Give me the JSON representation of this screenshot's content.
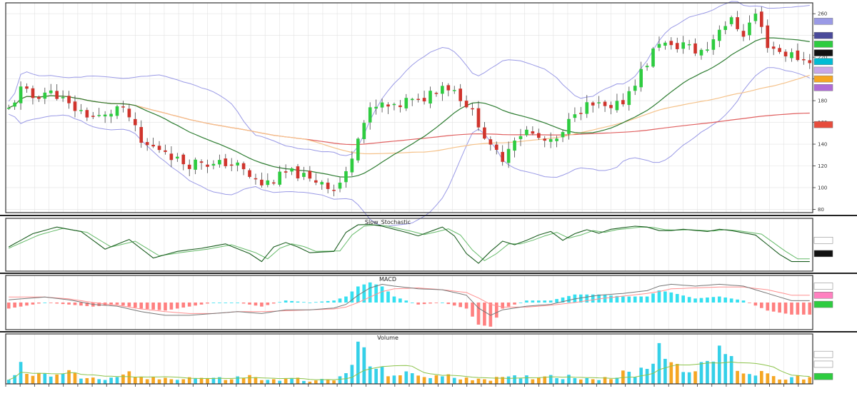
{
  "chart_data": {
    "type": "candlestick",
    "panels": [
      {
        "id": "price",
        "title": "",
        "ylim": [
          77,
          270
        ],
        "y_ticks": [
          80,
          100,
          120,
          140,
          160,
          180,
          200,
          220,
          240,
          260
        ]
      },
      {
        "id": "stoch",
        "title": "Slow_Stochastic",
        "ylim": [
          0,
          100
        ]
      },
      {
        "id": "macd",
        "title": "MACD",
        "ylim": [
          -25,
          25
        ]
      },
      {
        "id": "volume",
        "title": "Volume"
      }
    ],
    "x_tick_count": 56,
    "anchors": {
      "close": [
        [
          0,
          172
        ],
        [
          2,
          190
        ],
        [
          4,
          183
        ],
        [
          6,
          188
        ],
        [
          8,
          186
        ],
        [
          10,
          175
        ],
        [
          12,
          170
        ],
        [
          14,
          165
        ],
        [
          16,
          165
        ],
        [
          18,
          174
        ],
        [
          20,
          165
        ],
        [
          22,
          140
        ],
        [
          24,
          137
        ],
        [
          26,
          135
        ],
        [
          28,
          125
        ],
        [
          30,
          122
        ],
        [
          32,
          125
        ],
        [
          34,
          120
        ],
        [
          36,
          123
        ],
        [
          38,
          120
        ],
        [
          40,
          110
        ],
        [
          42,
          103
        ],
        [
          44,
          107
        ],
        [
          46,
          113
        ],
        [
          48,
          113
        ],
        [
          50,
          106
        ],
        [
          52,
          107
        ],
        [
          54,
          98
        ],
        [
          56,
          112
        ],
        [
          58,
          150
        ],
        [
          60,
          170
        ],
        [
          62,
          176
        ],
        [
          64,
          172
        ],
        [
          66,
          180
        ],
        [
          68,
          178
        ],
        [
          70,
          188
        ],
        [
          72,
          195
        ],
        [
          74,
          190
        ],
        [
          76,
          177
        ],
        [
          78,
          160
        ],
        [
          80,
          135
        ],
        [
          82,
          128
        ],
        [
          84,
          147
        ],
        [
          86,
          152
        ],
        [
          88,
          145
        ],
        [
          90,
          140
        ],
        [
          92,
          148
        ],
        [
          94,
          172
        ],
        [
          96,
          175
        ],
        [
          98,
          175
        ],
        [
          100,
          170
        ],
        [
          102,
          180
        ],
        [
          104,
          198
        ],
        [
          106,
          215
        ],
        [
          108,
          235
        ],
        [
          110,
          228
        ],
        [
          112,
          233
        ],
        [
          114,
          225
        ],
        [
          116,
          228
        ],
        [
          118,
          248
        ],
        [
          120,
          253
        ],
        [
          122,
          242
        ],
        [
          124,
          260
        ],
        [
          126,
          232
        ],
        [
          128,
          225
        ],
        [
          130,
          222
        ],
        [
          132,
          218
        ]
      ],
      "stoch": [
        [
          0,
          45
        ],
        [
          4,
          75
        ],
        [
          8,
          90
        ],
        [
          12,
          80
        ],
        [
          16,
          40
        ],
        [
          20,
          62
        ],
        [
          24,
          20
        ],
        [
          28,
          35
        ],
        [
          32,
          42
        ],
        [
          36,
          52
        ],
        [
          40,
          30
        ],
        [
          42,
          12
        ],
        [
          44,
          45
        ],
        [
          46,
          55
        ],
        [
          48,
          45
        ],
        [
          50,
          32
        ],
        [
          54,
          35
        ],
        [
          56,
          78
        ],
        [
          58,
          95
        ],
        [
          60,
          96
        ],
        [
          62,
          92
        ],
        [
          64,
          85
        ],
        [
          66,
          78
        ],
        [
          68,
          70
        ],
        [
          70,
          80
        ],
        [
          72,
          90
        ],
        [
          74,
          70
        ],
        [
          76,
          30
        ],
        [
          78,
          8
        ],
        [
          80,
          35
        ],
        [
          82,
          58
        ],
        [
          84,
          50
        ],
        [
          86,
          60
        ],
        [
          88,
          72
        ],
        [
          90,
          80
        ],
        [
          92,
          60
        ],
        [
          94,
          75
        ],
        [
          96,
          84
        ],
        [
          98,
          76
        ],
        [
          100,
          85
        ],
        [
          104,
          92
        ],
        [
          106,
          90
        ],
        [
          108,
          82
        ],
        [
          110,
          82
        ],
        [
          112,
          85
        ],
        [
          116,
          80
        ],
        [
          118,
          85
        ],
        [
          120,
          82
        ],
        [
          124,
          72
        ],
        [
          128,
          28
        ],
        [
          130,
          12
        ]
      ],
      "stoch_sig": [
        [
          0,
          42
        ],
        [
          5,
          72
        ],
        [
          9,
          87
        ],
        [
          13,
          78
        ],
        [
          17,
          45
        ],
        [
          21,
          58
        ],
        [
          25,
          25
        ],
        [
          29,
          33
        ],
        [
          33,
          40
        ],
        [
          37,
          50
        ],
        [
          41,
          32
        ],
        [
          43,
          18
        ],
        [
          45,
          42
        ],
        [
          47,
          52
        ],
        [
          49,
          46
        ],
        [
          51,
          35
        ],
        [
          55,
          36
        ],
        [
          57,
          72
        ],
        [
          59,
          92
        ],
        [
          61,
          95
        ],
        [
          63,
          92
        ],
        [
          65,
          86
        ],
        [
          67,
          80
        ],
        [
          69,
          73
        ],
        [
          71,
          79
        ],
        [
          73,
          86
        ],
        [
          75,
          72
        ],
        [
          77,
          38
        ],
        [
          79,
          14
        ],
        [
          81,
          30
        ],
        [
          83,
          52
        ],
        [
          85,
          52
        ],
        [
          87,
          60
        ],
        [
          89,
          70
        ],
        [
          91,
          78
        ],
        [
          93,
          65
        ],
        [
          95,
          72
        ],
        [
          97,
          82
        ],
        [
          99,
          78
        ],
        [
          101,
          84
        ],
        [
          105,
          90
        ],
        [
          107,
          89
        ],
        [
          109,
          84
        ],
        [
          111,
          83
        ],
        [
          113,
          84
        ],
        [
          117,
          81
        ],
        [
          119,
          84
        ],
        [
          121,
          82
        ],
        [
          125,
          74
        ],
        [
          129,
          35
        ],
        [
          131,
          18
        ]
      ],
      "macd": [
        [
          0,
          3
        ],
        [
          6,
          6
        ],
        [
          10,
          3
        ],
        [
          14,
          -2
        ],
        [
          18,
          -4
        ],
        [
          22,
          -10
        ],
        [
          26,
          -14
        ],
        [
          30,
          -14
        ],
        [
          34,
          -12
        ],
        [
          38,
          -10
        ],
        [
          42,
          -12
        ],
        [
          46,
          -8
        ],
        [
          50,
          -8
        ],
        [
          54,
          -6
        ],
        [
          56,
          -2
        ],
        [
          58,
          8
        ],
        [
          60,
          16
        ],
        [
          62,
          20
        ],
        [
          64,
          18
        ],
        [
          68,
          15
        ],
        [
          72,
          14
        ],
        [
          76,
          8
        ],
        [
          78,
          -6
        ],
        [
          80,
          -14
        ],
        [
          82,
          -8
        ],
        [
          86,
          -4
        ],
        [
          90,
          -2
        ],
        [
          94,
          4
        ],
        [
          98,
          8
        ],
        [
          102,
          10
        ],
        [
          106,
          13
        ],
        [
          108,
          18
        ],
        [
          110,
          20
        ],
        [
          114,
          18
        ],
        [
          118,
          20
        ],
        [
          122,
          18
        ],
        [
          126,
          10
        ],
        [
          130,
          2
        ]
      ],
      "macd_sig": [
        [
          0,
          6
        ],
        [
          6,
          6
        ],
        [
          10,
          4
        ],
        [
          14,
          0
        ],
        [
          18,
          -3
        ],
        [
          22,
          -7
        ],
        [
          26,
          -10
        ],
        [
          30,
          -12
        ],
        [
          34,
          -12
        ],
        [
          38,
          -10
        ],
        [
          42,
          -10
        ],
        [
          46,
          -9
        ],
        [
          50,
          -8
        ],
        [
          54,
          -7
        ],
        [
          56,
          -5
        ],
        [
          58,
          0
        ],
        [
          60,
          6
        ],
        [
          62,
          12
        ],
        [
          64,
          15
        ],
        [
          68,
          16
        ],
        [
          72,
          14
        ],
        [
          76,
          11
        ],
        [
          78,
          5
        ],
        [
          80,
          -2
        ],
        [
          82,
          -5
        ],
        [
          86,
          -5
        ],
        [
          90,
          -3
        ],
        [
          94,
          0
        ],
        [
          98,
          4
        ],
        [
          102,
          7
        ],
        [
          106,
          10
        ],
        [
          108,
          12
        ],
        [
          110,
          15
        ],
        [
          114,
          16
        ],
        [
          118,
          17
        ],
        [
          122,
          17
        ],
        [
          126,
          14
        ],
        [
          130,
          8
        ]
      ],
      "volume": [
        [
          0,
          3
        ],
        [
          2,
          14
        ],
        [
          4,
          6
        ],
        [
          8,
          9
        ],
        [
          10,
          13
        ],
        [
          12,
          5
        ],
        [
          14,
          4
        ],
        [
          18,
          4
        ],
        [
          20,
          8
        ],
        [
          22,
          5
        ],
        [
          24,
          4
        ],
        [
          28,
          5
        ],
        [
          32,
          5
        ],
        [
          36,
          4
        ],
        [
          40,
          6
        ],
        [
          42,
          4
        ],
        [
          44,
          3
        ],
        [
          48,
          4
        ],
        [
          50,
          3
        ],
        [
          52,
          3
        ],
        [
          54,
          3
        ],
        [
          56,
          8
        ],
        [
          58,
          30
        ],
        [
          60,
          16
        ],
        [
          62,
          10
        ],
        [
          64,
          8
        ],
        [
          68,
          7
        ],
        [
          72,
          6
        ],
        [
          76,
          5
        ],
        [
          80,
          4
        ],
        [
          84,
          5
        ],
        [
          88,
          6
        ],
        [
          90,
          7
        ],
        [
          92,
          6
        ],
        [
          96,
          5
        ],
        [
          100,
          5
        ],
        [
          102,
          8
        ],
        [
          104,
          8
        ],
        [
          106,
          14
        ],
        [
          108,
          34
        ],
        [
          110,
          16
        ],
        [
          112,
          16
        ],
        [
          114,
          12
        ],
        [
          116,
          14
        ],
        [
          118,
          30
        ],
        [
          120,
          18
        ],
        [
          122,
          10
        ],
        [
          124,
          8
        ],
        [
          126,
          10
        ],
        [
          128,
          5
        ],
        [
          130,
          5
        ],
        [
          132,
          5
        ]
      ]
    },
    "price_badges": [
      {
        "price": 253,
        "color": "#9a9ae6"
      },
      {
        "price": 240,
        "color": "#4a4a9a"
      },
      {
        "price": 232,
        "color": "#2ecc40"
      },
      {
        "price": 224,
        "color": "#111111"
      },
      {
        "price": 216,
        "color": "#00bcd4"
      },
      {
        "price": 208,
        "color": "#c8a8e8"
      },
      {
        "price": 200,
        "color": "#f5a623"
      },
      {
        "price": 192,
        "color": "#b06bd6"
      },
      {
        "price": 158,
        "color": "#e74c3c"
      }
    ],
    "stoch_badges": [
      {
        "value": 60,
        "color": "#ffffff"
      },
      {
        "value": 30,
        "color": "#111111"
      }
    ],
    "macd_badges": [
      {
        "value": 18,
        "color": "#ffffff"
      },
      {
        "value": 8,
        "color": "#ff80c0"
      },
      {
        "value": -2,
        "color": "#2ecc40"
      }
    ],
    "volume_badges": [
      {
        "value": 24,
        "color": "#ffffff"
      },
      {
        "value": 16,
        "color": "#ffffff"
      },
      {
        "value": 6,
        "color": "#2ecc40"
      }
    ],
    "colors": {
      "up": "#2ecc40",
      "down": "#d0342c",
      "bollinger": "#9a9ae6",
      "ma_short": "#2e7d32",
      "ma_mid": "#f5c28a",
      "ma_long": "#e06060",
      "stoch_k": "#1b5e20",
      "stoch_d": "#66bb6a",
      "hist_pos": "#35e0f0",
      "hist_neg": "#ff8080",
      "vol_up": "#35d0e8",
      "vol_down": "#f5a623",
      "vol_ma": "#8bc34a"
    }
  }
}
